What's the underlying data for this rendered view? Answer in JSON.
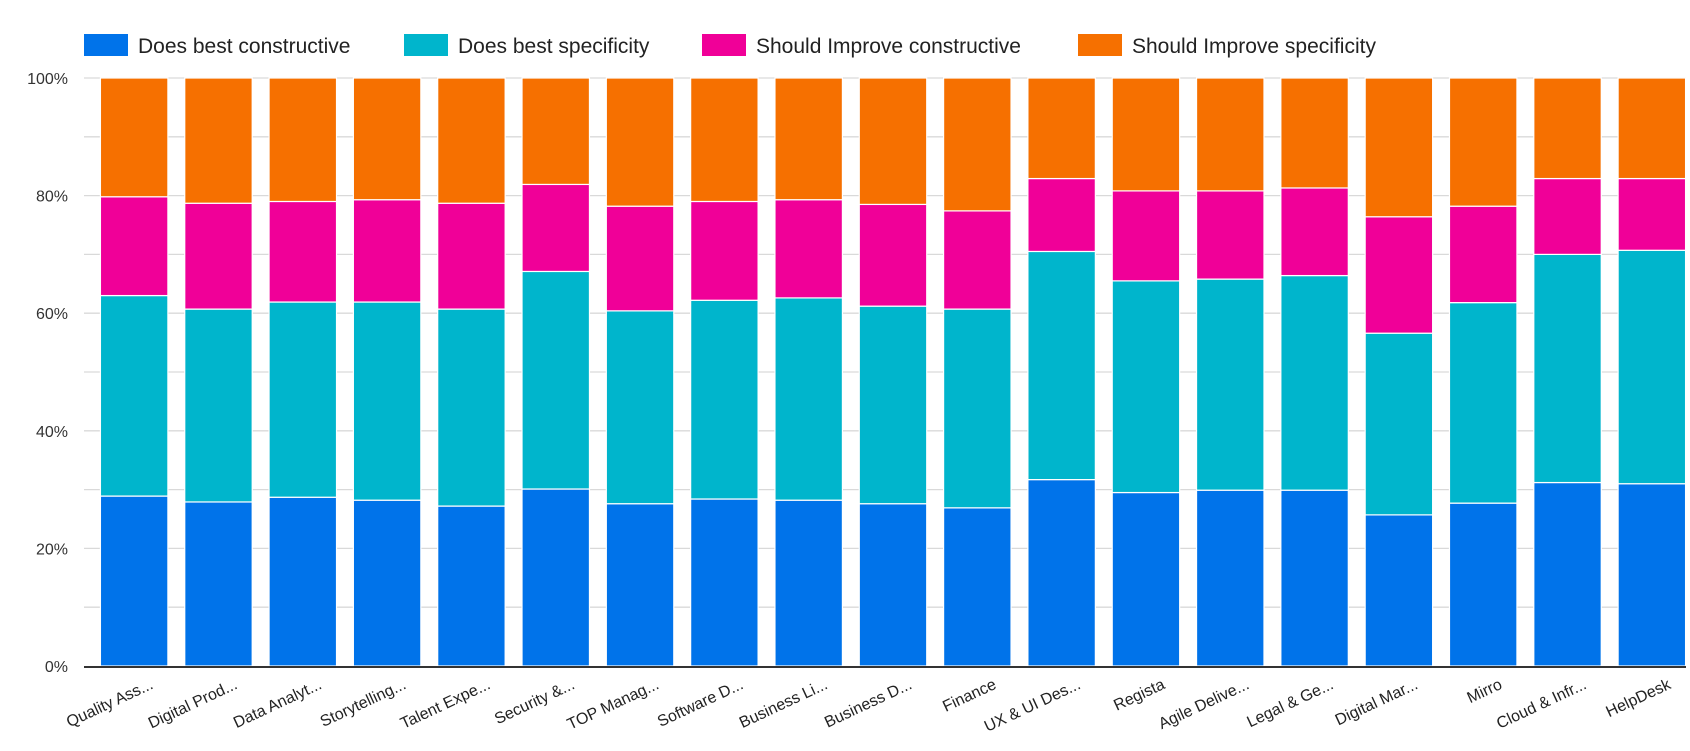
{
  "chart_data": {
    "type": "bar",
    "stacked": true,
    "normalized": true,
    "title": "",
    "xlabel": "",
    "ylabel": "",
    "ylim": [
      0,
      100
    ],
    "yticks": [
      "0%",
      "20%",
      "40%",
      "60%",
      "80%",
      "100%"
    ],
    "ytick_values": [
      0,
      20,
      40,
      60,
      80,
      100
    ],
    "grid": true,
    "legend_position": "top-left",
    "categories": [
      "Quality Ass...",
      "Digital Prod...",
      "Data Analyt...",
      "Storytelling...",
      "Talent Expe...",
      "Security &...",
      "TOP Manag...",
      "Software D...",
      "Business Li...",
      "Business D...",
      "Finance",
      "UX & UI Des...",
      "Regista",
      "Agile Delive...",
      "Legal & Ge...",
      "Digital Mar...",
      "Mirro",
      "Cloud & Infr...",
      "HelpDesk"
    ],
    "series": [
      {
        "name": "Does best constructive",
        "color": "#0073ea",
        "values": [
          28.9,
          27.9,
          28.7,
          28.2,
          27.2,
          30.1,
          27.6,
          28.4,
          28.2,
          27.6,
          26.9,
          31.7,
          29.5,
          29.9,
          29.9,
          25.7,
          27.7,
          31.2,
          31.0
        ]
      },
      {
        "name": "Does best specificity",
        "color": "#00b5cc",
        "values": [
          34.1,
          32.8,
          33.2,
          33.7,
          33.5,
          37.0,
          32.8,
          33.8,
          34.4,
          33.6,
          33.8,
          38.8,
          36.0,
          35.9,
          36.5,
          30.9,
          34.1,
          38.8,
          39.7
        ]
      },
      {
        "name": "Should Improve constructive",
        "color": "#f00098",
        "values": [
          16.8,
          18.0,
          17.1,
          17.4,
          18.0,
          14.8,
          17.8,
          16.8,
          16.7,
          17.3,
          16.7,
          12.4,
          15.3,
          15.0,
          14.9,
          19.8,
          16.4,
          12.9,
          12.2
        ]
      },
      {
        "name": "Should Improve specificity",
        "color": "#f67000",
        "values": [
          20.2,
          21.3,
          21.0,
          20.7,
          21.3,
          18.1,
          21.8,
          21.0,
          20.7,
          21.5,
          22.6,
          17.1,
          19.2,
          19.2,
          18.7,
          23.6,
          21.8,
          17.1,
          17.1
        ]
      }
    ]
  }
}
